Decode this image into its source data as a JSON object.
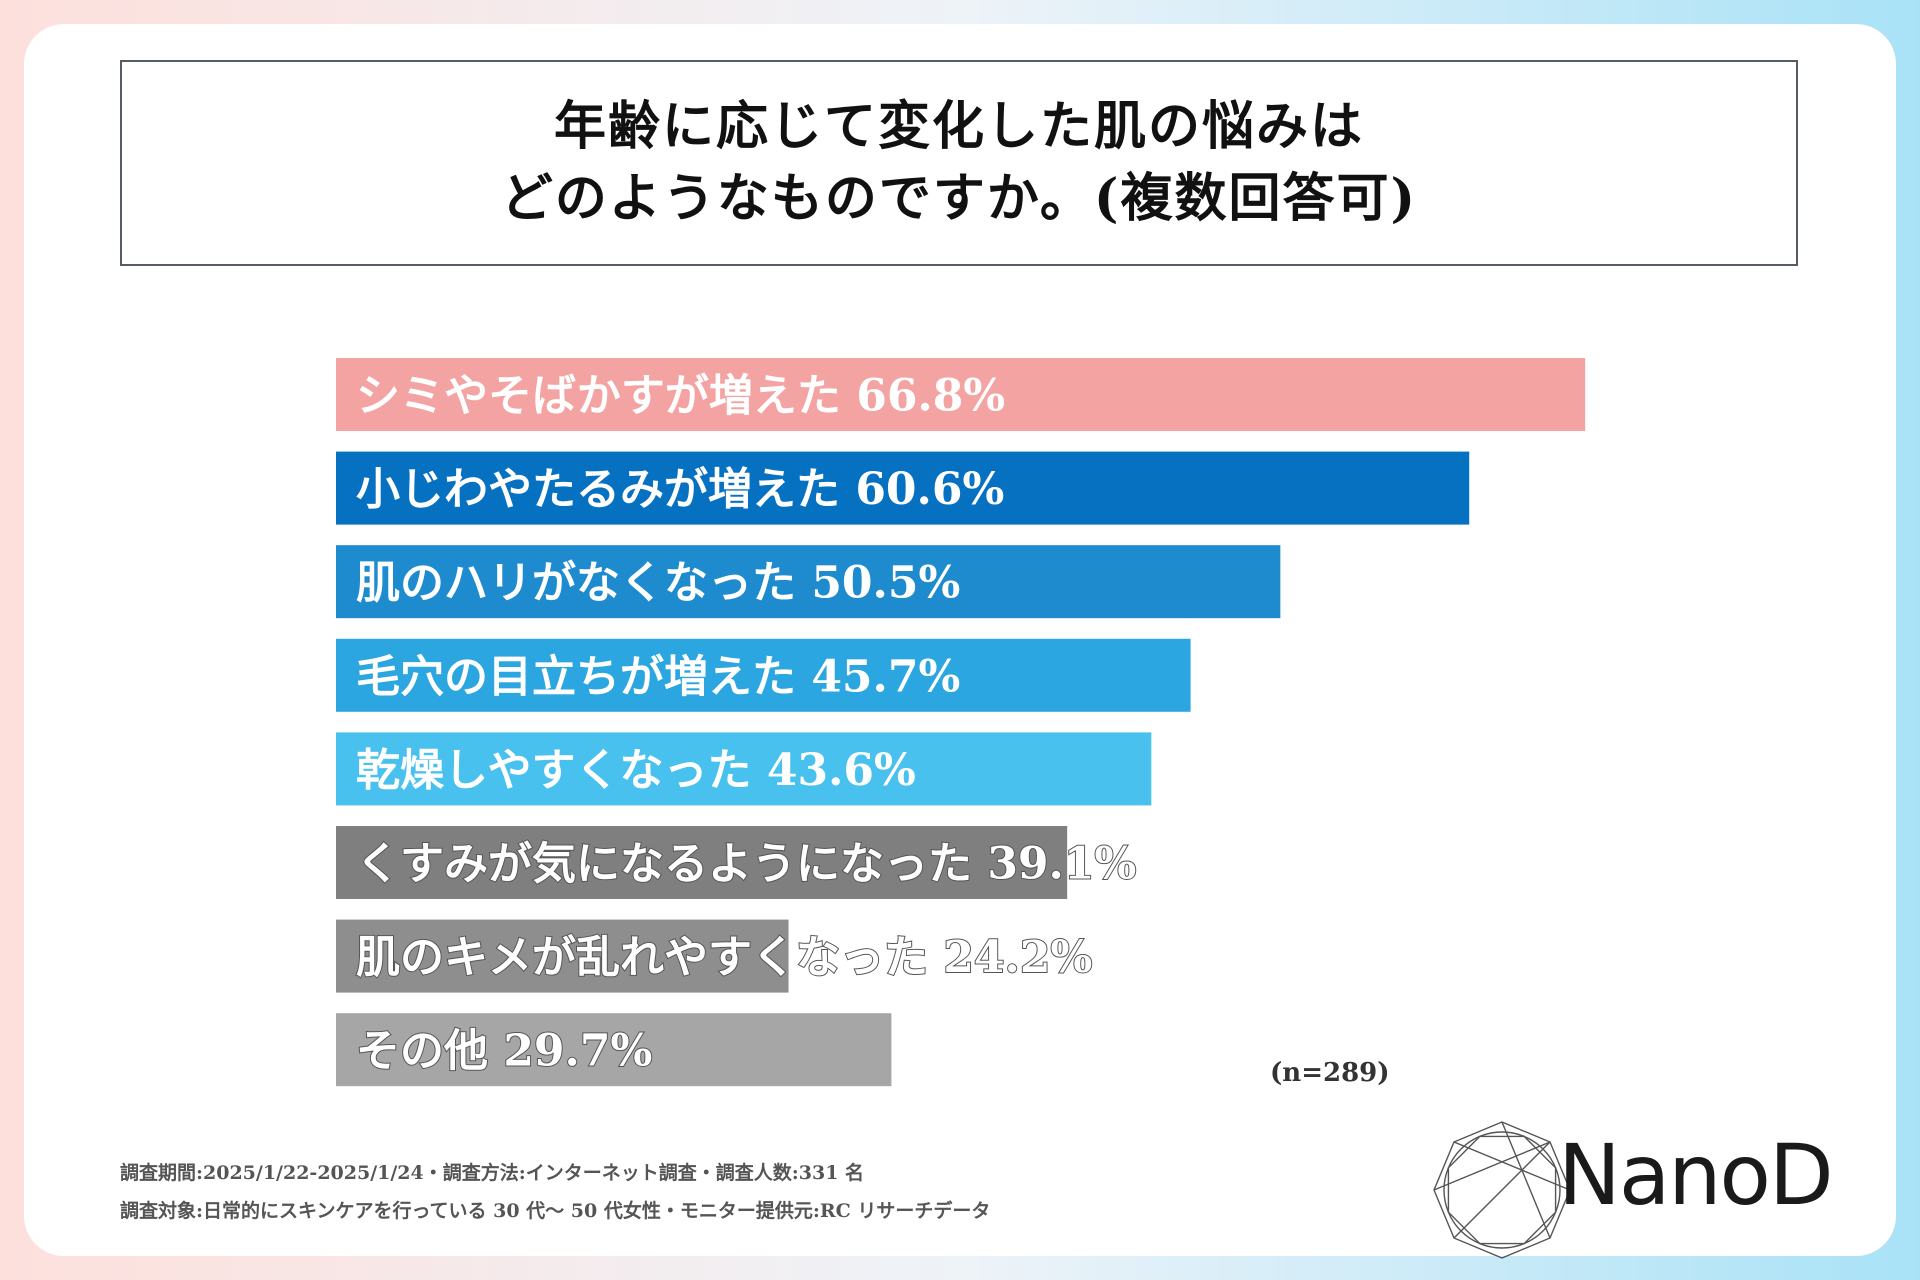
{
  "chart_data": {
    "type": "bar",
    "orientation": "horizontal",
    "title_line1": "年齢に応じて変化した肌の悩みは",
    "title_line2": "どのようなものですか。(複数回答可)",
    "categories": [
      "シミやそばかすが増えた",
      "小じわやたるみが増えた",
      "肌のハリがなくなった",
      "毛穴の目立ちが増えた",
      "乾燥しやすくなった",
      "くすみが気になるようになった",
      "肌のキメが乱れやすくなった",
      "その他"
    ],
    "values": [
      66.8,
      60.6,
      50.5,
      45.7,
      43.6,
      39.1,
      24.2,
      29.7
    ],
    "value_labels": [
      "66.8%",
      "60.6%",
      "50.5%",
      "45.7%",
      "43.6%",
      "39.1%",
      "24.2%",
      "29.7%"
    ],
    "colors": [
      "#f4a3a3",
      "#0670c1",
      "#1e8bcf",
      "#2ca6e0",
      "#48c1ef",
      "#7f7f7f",
      "#8e8e8e",
      "#a6a6a6"
    ],
    "xlim": [
      0,
      100
    ],
    "sample_note": "(n=289)"
  },
  "footnotes": {
    "line1": "調査期間:2025/1/22-2025/1/24・調査方法:インターネット調査・調査人数:331 名",
    "line2": "調査対象:日常的にスキンケアを行っている 30 代〜 50 代女性・モニター提供元:RC リサーチデータ"
  },
  "logo": {
    "text": "NanoD"
  }
}
